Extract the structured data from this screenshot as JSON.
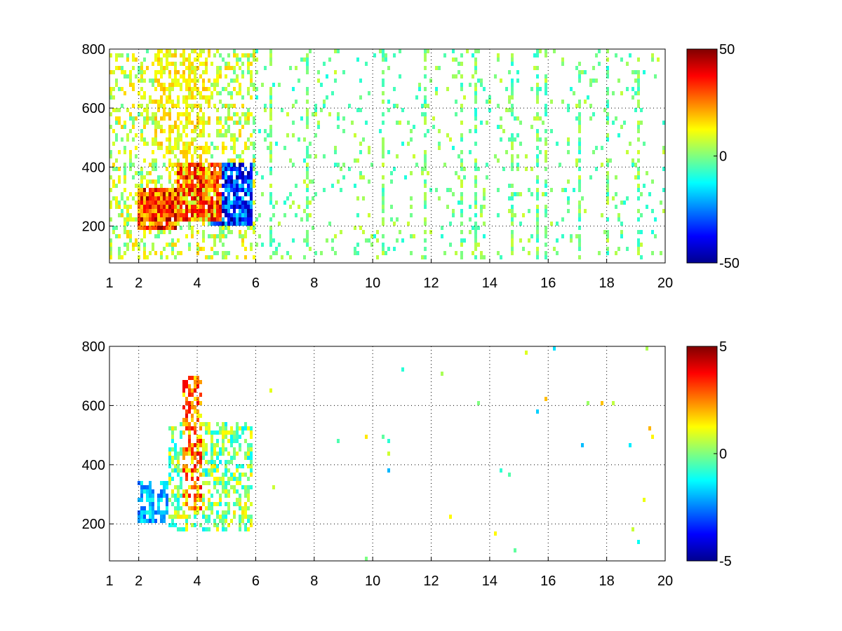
{
  "chart_data": [
    {
      "type": "heatmap",
      "title": "",
      "xlabel": "",
      "ylabel": "",
      "xlim": [
        1,
        20
      ],
      "ylim": [
        75,
        800
      ],
      "x_ticks": [
        1,
        2,
        4,
        6,
        8,
        10,
        12,
        14,
        16,
        18,
        20
      ],
      "y_ticks": [
        200,
        400,
        600,
        800
      ],
      "grid": true,
      "colormap": "jet",
      "colorbar": {
        "min": -50,
        "max": 50,
        "ticks": [
          50,
          0,
          -50
        ]
      },
      "density_regions": [
        {
          "x": [
            1.0,
            6.0
          ],
          "y": [
            75,
            800
          ],
          "density": 0.35,
          "value_range": [
            -5,
            18
          ]
        },
        {
          "x": [
            2.0,
            3.3
          ],
          "y": [
            180,
            330
          ],
          "density": 0.95,
          "value_range": [
            15,
            50
          ]
        },
        {
          "x": [
            3.3,
            4.8
          ],
          "y": [
            220,
            420
          ],
          "density": 0.95,
          "value_range": [
            5,
            45
          ]
        },
        {
          "x": [
            4.5,
            5.9
          ],
          "y": [
            200,
            420
          ],
          "density": 0.9,
          "value_range": [
            -50,
            -15
          ]
        },
        {
          "x": [
            2.5,
            4.5
          ],
          "y": [
            420,
            800
          ],
          "density": 0.55,
          "value_range": [
            5,
            20
          ]
        },
        {
          "x": [
            6.0,
            20.0
          ],
          "y": [
            75,
            800
          ],
          "density": 0.07,
          "value_range": [
            -10,
            8
          ]
        }
      ],
      "vertical_streaks_x": [
        6.5,
        7.8,
        10.4,
        11.8,
        13.0,
        13.5,
        14.8,
        15.6,
        15.9,
        17.1,
        18.0,
        19.1
      ]
    },
    {
      "type": "heatmap",
      "title": "",
      "xlabel": "",
      "ylabel": "",
      "xlim": [
        1,
        20
      ],
      "ylim": [
        75,
        800
      ],
      "x_ticks": [
        1,
        2,
        4,
        6,
        8,
        10,
        12,
        14,
        16,
        18,
        20
      ],
      "y_ticks": [
        200,
        400,
        600,
        800
      ],
      "grid": true,
      "colormap": "jet",
      "colorbar": {
        "min": -5,
        "max": 5,
        "ticks": [
          5,
          0,
          -5
        ]
      },
      "density_regions": [
        {
          "x": [
            2.0,
            3.0
          ],
          "y": [
            200,
            350
          ],
          "density": 0.6,
          "value_range": [
            -3,
            -1
          ]
        },
        {
          "x": [
            3.5,
            4.2
          ],
          "y": [
            250,
            700
          ],
          "density": 0.6,
          "value_range": [
            1,
            4
          ]
        },
        {
          "x": [
            3.0,
            5.9
          ],
          "y": [
            180,
            550
          ],
          "density": 0.55,
          "value_range": [
            -1.5,
            1.5
          ]
        },
        {
          "x": [
            6.0,
            20.0
          ],
          "y": [
            75,
            800
          ],
          "density": 0.004,
          "value_range": [
            -2,
            2
          ]
        }
      ],
      "vertical_streaks_x": [
        10.5
      ]
    }
  ]
}
